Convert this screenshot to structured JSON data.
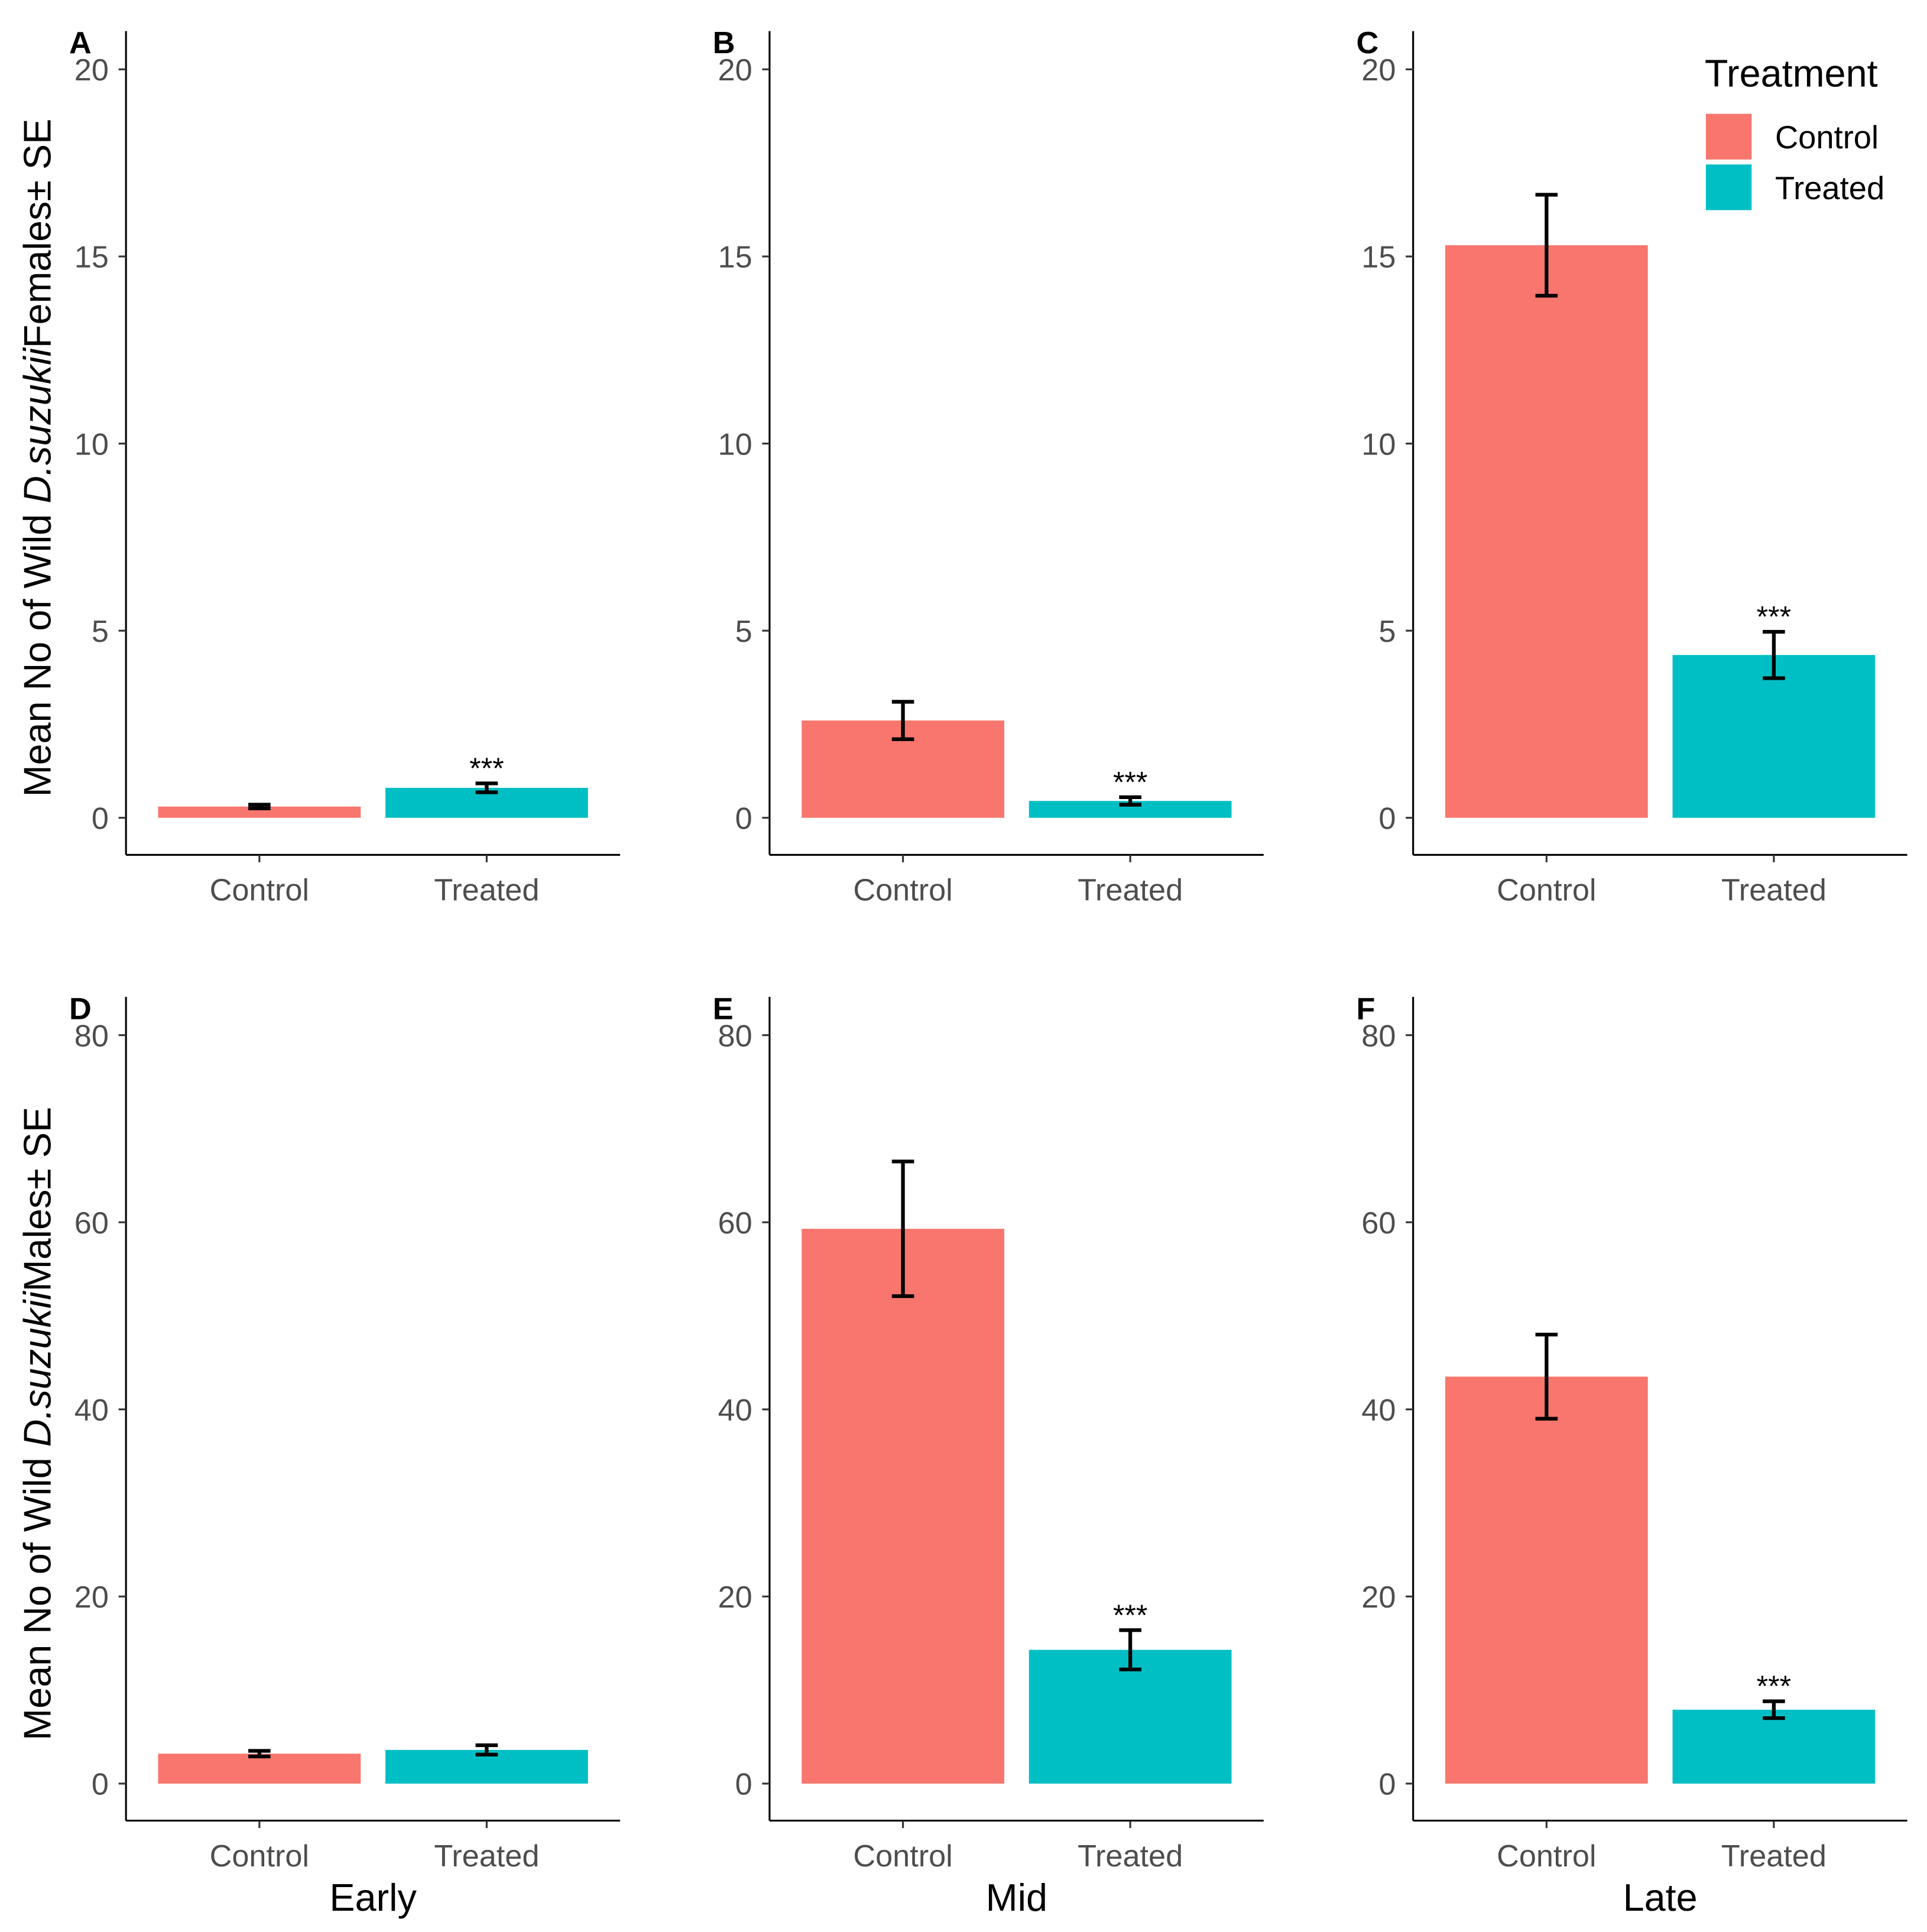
{
  "chart_data": {
    "type": "bar",
    "legend": {
      "title": "Treatment",
      "position": "top-right",
      "entries": [
        {
          "label": "Control",
          "color": "#F8766D"
        },
        {
          "label": "Treated",
          "color": "#00BFC4"
        }
      ]
    },
    "categories": [
      "Control",
      "Treated"
    ],
    "rows": [
      {
        "ylabel_pre": "Mean No of Wild ",
        "ylabel_italic": "D.suzukii",
        "ylabel_post": "Females± SE",
        "ylim": [
          0,
          20
        ],
        "yticks": [
          "0",
          "5",
          "10",
          "15",
          "20"
        ],
        "ytick_values": [
          0,
          5,
          10,
          15,
          20
        ]
      },
      {
        "ylabel_pre": "Mean No of Wild ",
        "ylabel_italic": "D.suzukii",
        "ylabel_post": "Males± SE",
        "ylim": [
          0,
          80
        ],
        "yticks": [
          "0",
          "20",
          "40",
          "60",
          "80"
        ],
        "ytick_values": [
          0,
          20,
          40,
          60,
          80
        ]
      }
    ],
    "columns": [
      "Early",
      "Mid",
      "Late"
    ],
    "panels": [
      {
        "letter": "A",
        "row": 0,
        "col": 0,
        "values": [
          0.3,
          0.8
        ],
        "se": [
          0.05,
          0.12
        ],
        "annotation": [
          "",
          "***"
        ]
      },
      {
        "letter": "B",
        "row": 0,
        "col": 1,
        "values": [
          2.6,
          0.45
        ],
        "se": [
          0.5,
          0.1
        ],
        "annotation": [
          "",
          "***"
        ]
      },
      {
        "letter": "C",
        "row": 0,
        "col": 2,
        "values": [
          15.3,
          4.35
        ],
        "se": [
          1.35,
          0.62
        ],
        "annotation": [
          "",
          "***"
        ]
      },
      {
        "letter": "D",
        "row": 1,
        "col": 0,
        "values": [
          3.2,
          3.6
        ],
        "se": [
          0.3,
          0.5
        ],
        "annotation": [
          "",
          ""
        ]
      },
      {
        "letter": "E",
        "row": 1,
        "col": 1,
        "values": [
          59.3,
          14.3
        ],
        "se": [
          7.2,
          2.1
        ],
        "annotation": [
          "",
          "***"
        ]
      },
      {
        "letter": "F",
        "row": 1,
        "col": 2,
        "values": [
          43.5,
          7.9
        ],
        "se": [
          4.5,
          0.9
        ],
        "annotation": [
          "",
          "***"
        ]
      }
    ]
  }
}
